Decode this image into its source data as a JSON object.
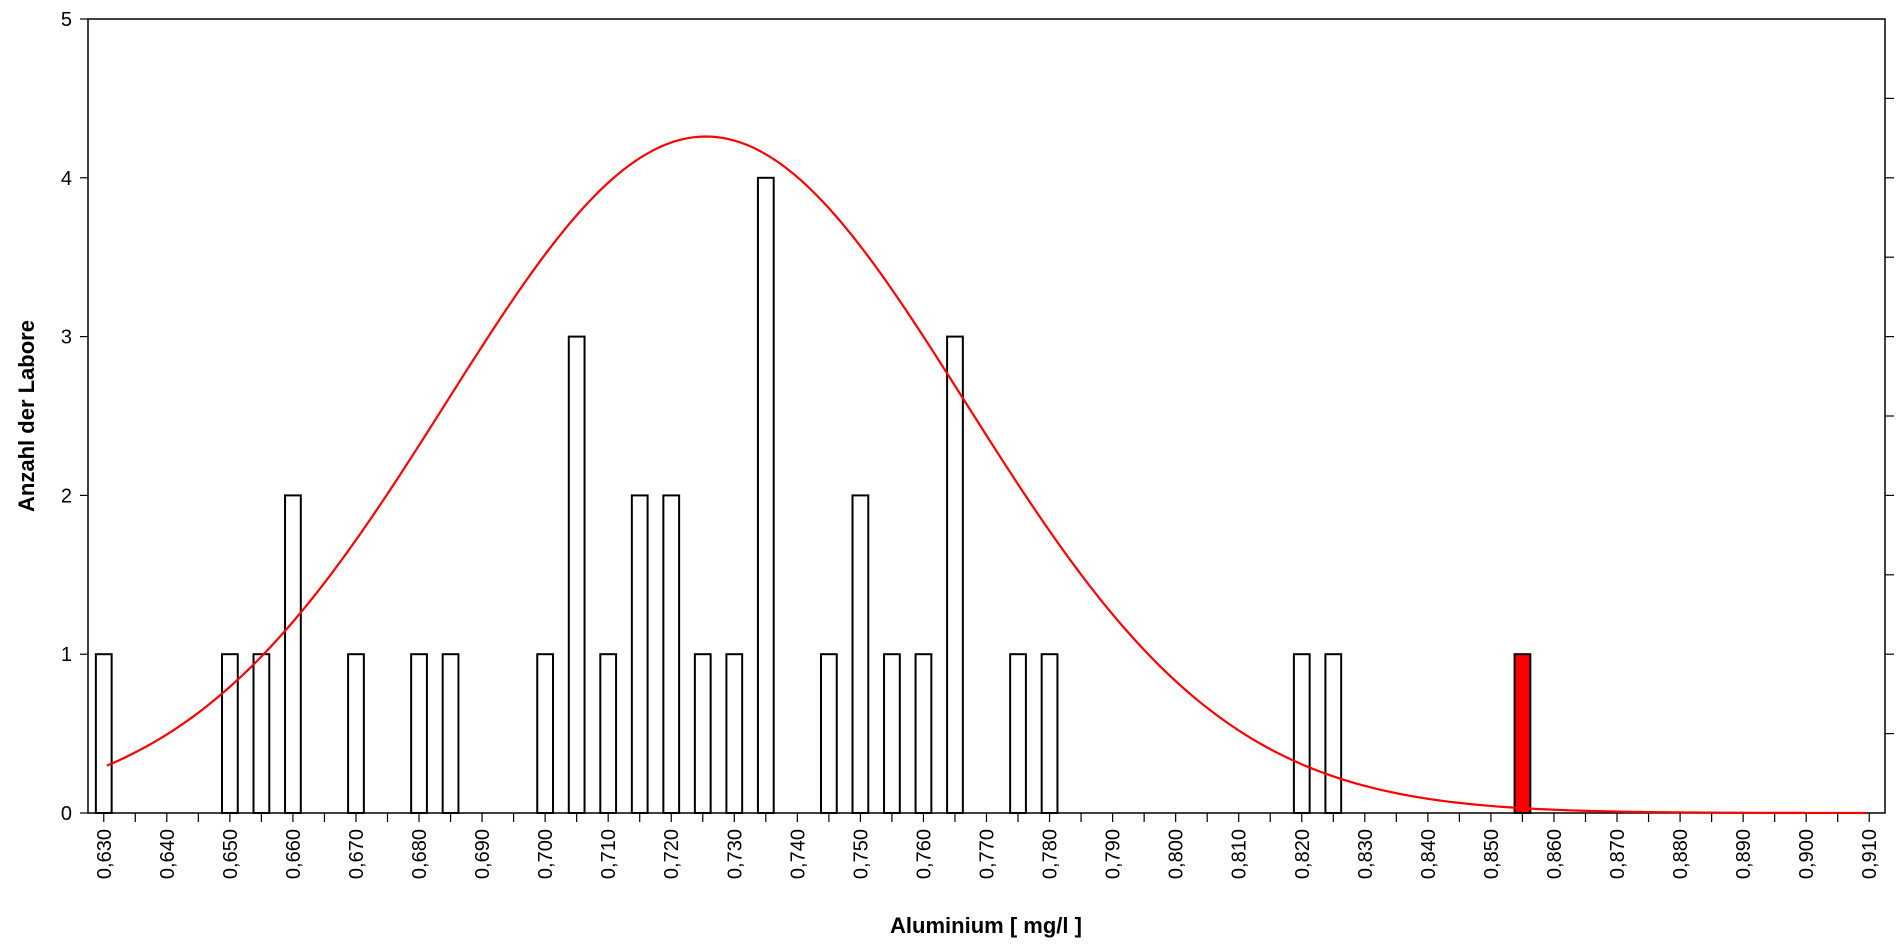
{
  "chart_data": {
    "type": "bar",
    "xlabel": "Aluminium [ mg/l ]",
    "ylabel": "Anzahl der Labore",
    "xlim": [
      0.6275,
      0.9125
    ],
    "ylim": [
      0,
      5
    ],
    "yticks": [
      0,
      1,
      2,
      3,
      4,
      5
    ],
    "xticks": [
      "0,630",
      "0,640",
      "0,650",
      "0,660",
      "0,670",
      "0,680",
      "0,690",
      "0,700",
      "0,710",
      "0,720",
      "0,730",
      "0,740",
      "0,750",
      "0,760",
      "0,770",
      "0,780",
      "0,790",
      "0,800",
      "0,810",
      "0,820",
      "0,830",
      "0,840",
      "0,850",
      "0,860",
      "0,870",
      "0,880",
      "0,890",
      "0,900",
      "0,910"
    ],
    "bar_width": 0.0025,
    "grid": false,
    "colors": {
      "bar_fill": "#ffffff",
      "bar_stroke": "#000000",
      "highlight_fill": "#ff0000",
      "curve": "#ff0000"
    },
    "bars": [
      {
        "x": 0.63,
        "value": 1
      },
      {
        "x": 0.65,
        "value": 1
      },
      {
        "x": 0.655,
        "value": 1
      },
      {
        "x": 0.66,
        "value": 2
      },
      {
        "x": 0.67,
        "value": 1
      },
      {
        "x": 0.68,
        "value": 1
      },
      {
        "x": 0.685,
        "value": 1
      },
      {
        "x": 0.7,
        "value": 1
      },
      {
        "x": 0.705,
        "value": 3
      },
      {
        "x": 0.71,
        "value": 1
      },
      {
        "x": 0.715,
        "value": 2
      },
      {
        "x": 0.72,
        "value": 2
      },
      {
        "x": 0.725,
        "value": 1
      },
      {
        "x": 0.73,
        "value": 1
      },
      {
        "x": 0.735,
        "value": 4
      },
      {
        "x": 0.745,
        "value": 1
      },
      {
        "x": 0.75,
        "value": 2
      },
      {
        "x": 0.755,
        "value": 1
      },
      {
        "x": 0.76,
        "value": 1
      },
      {
        "x": 0.765,
        "value": 3
      },
      {
        "x": 0.775,
        "value": 1
      },
      {
        "x": 0.78,
        "value": 1
      },
      {
        "x": 0.82,
        "value": 1
      },
      {
        "x": 0.825,
        "value": 1
      },
      {
        "x": 0.855,
        "value": 1,
        "highlight": true
      }
    ],
    "curve": {
      "type": "normal",
      "mean": 0.7255,
      "sd": 0.0412,
      "peak": 4.26,
      "x_range": [
        0.6305,
        0.9095
      ]
    }
  }
}
